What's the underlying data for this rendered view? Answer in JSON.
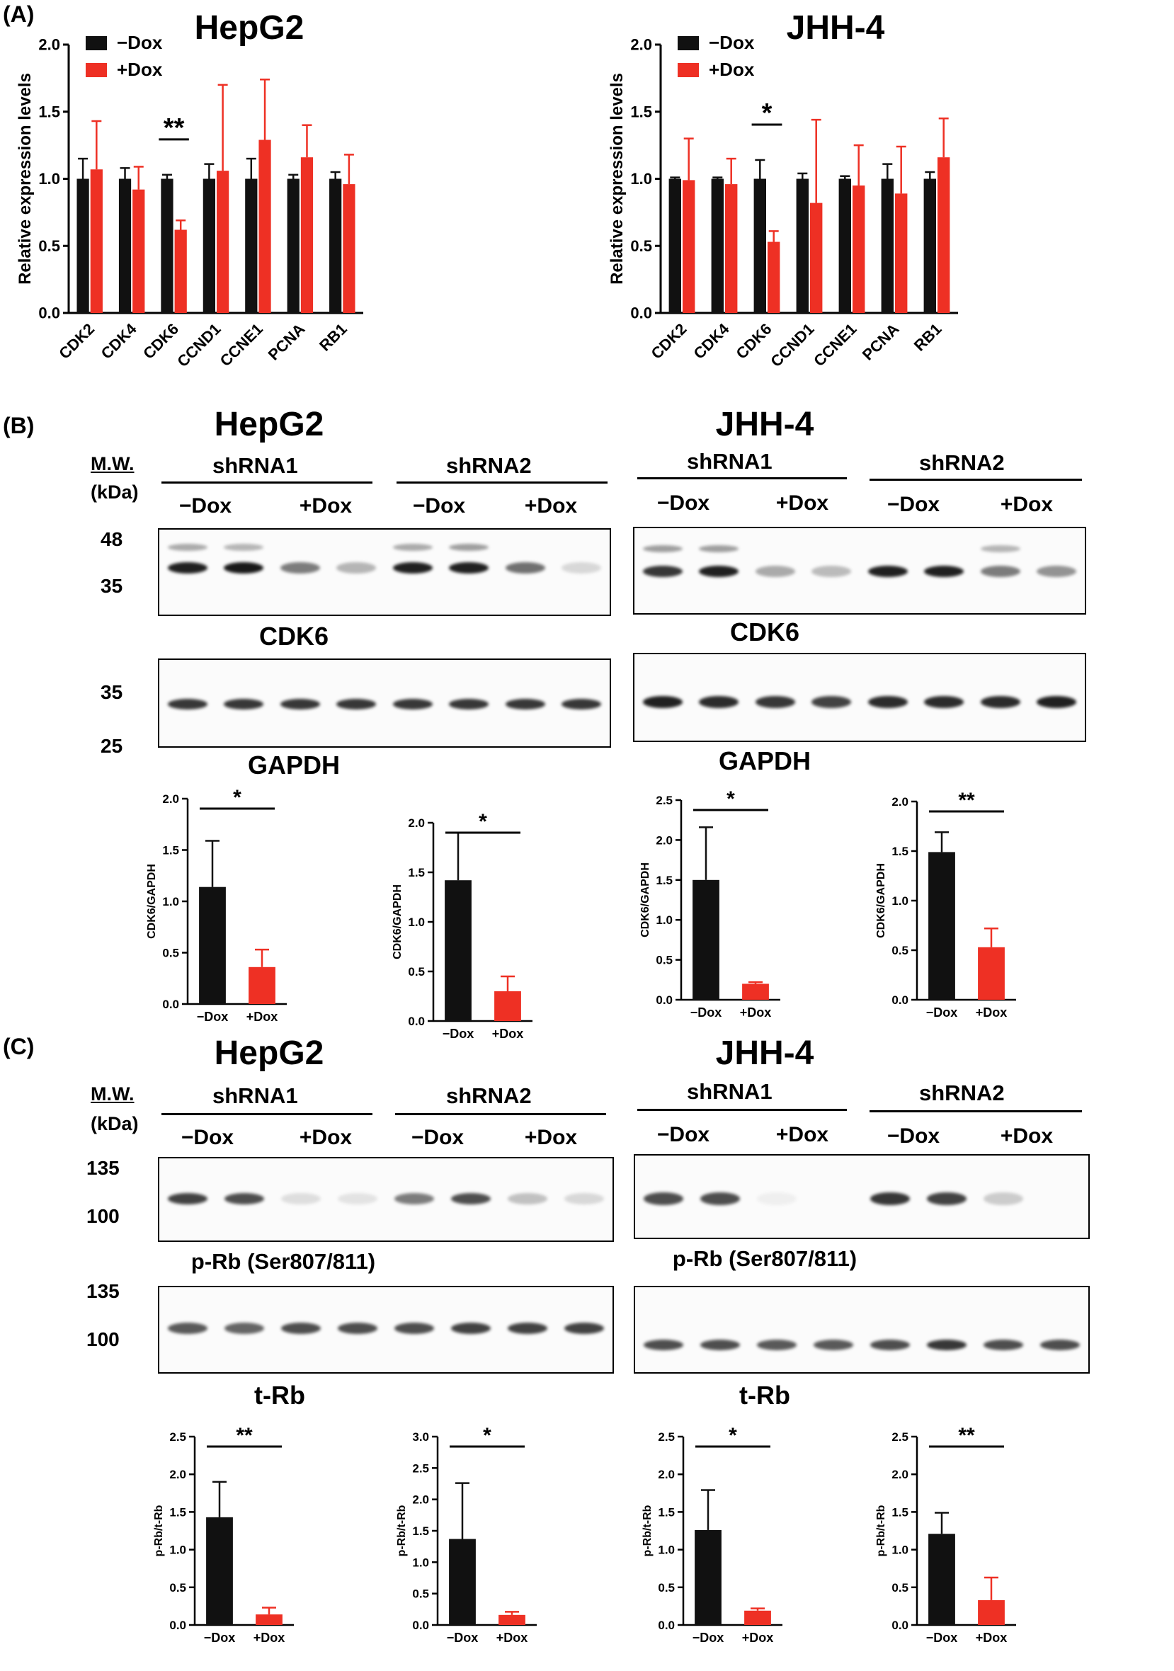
{
  "panels": {
    "A": "(A)",
    "B": "(B)",
    "C": "(C)"
  },
  "cells": {
    "hepg2": "HepG2",
    "jhh4": "JHH-4"
  },
  "mw": {
    "header": "M.W.",
    "unit": "(kDa)"
  },
  "groups": {
    "sh1": "shRNA1",
    "sh2": "shRNA2"
  },
  "conditions": {
    "minus": "−Dox",
    "plus": "+Dox"
  },
  "blot_labels": {
    "cdk6": "CDK6",
    "gapdh": "GAPDH",
    "prb": "p-Rb (Ser807/811)",
    "trb": "t-Rb"
  },
  "blot_mw_markers": {
    "b_top": [
      "48",
      "35"
    ],
    "b_bottom": [
      "35",
      "25"
    ],
    "c_top": [
      "135",
      "100"
    ],
    "c_bottom": [
      "135",
      "100"
    ]
  },
  "colors": {
    "minus_dox": "#111111",
    "plus_dox": "#ee3024"
  },
  "chart_data": [
    {
      "id": "A-HepG2",
      "type": "bar",
      "title": "HepG2",
      "ylabel": "Relative expression levels",
      "ylim": [
        0,
        2.0
      ],
      "yticks": [
        "0.0",
        "0.5",
        "1.0",
        "1.5",
        "2.0"
      ],
      "categories": [
        "CDK2",
        "CDK4",
        "CDK6",
        "CCND1",
        "CCNE1",
        "PCNA",
        "RB1"
      ],
      "series": [
        {
          "name": "−Dox",
          "values": [
            1.0,
            1.0,
            1.0,
            1.0,
            1.0,
            1.0,
            1.0
          ],
          "errors": [
            0.15,
            0.08,
            0.03,
            0.11,
            0.15,
            0.03,
            0.05
          ]
        },
        {
          "name": "+Dox",
          "values": [
            1.07,
            0.92,
            0.62,
            1.06,
            1.29,
            1.16,
            0.96
          ],
          "errors": [
            0.36,
            0.17,
            0.07,
            0.64,
            0.45,
            0.24,
            0.22
          ]
        }
      ],
      "significance": [
        {
          "category": "CDK6",
          "label": "**"
        }
      ],
      "legend": "top-left"
    },
    {
      "id": "A-JHH4",
      "type": "bar",
      "title": "JHH-4",
      "ylabel": "Relative expression levels",
      "ylim": [
        0,
        2.0
      ],
      "yticks": [
        "0.0",
        "0.5",
        "1.0",
        "1.5",
        "2.0"
      ],
      "categories": [
        "CDK2",
        "CDK4",
        "CDK6",
        "CCND1",
        "CCNE1",
        "PCNA",
        "RB1"
      ],
      "series": [
        {
          "name": "−Dox",
          "values": [
            1.0,
            1.0,
            1.0,
            1.0,
            1.0,
            1.0,
            1.0
          ],
          "errors": [
            0.01,
            0.01,
            0.14,
            0.04,
            0.02,
            0.11,
            0.05
          ]
        },
        {
          "name": "+Dox",
          "values": [
            0.99,
            0.96,
            0.53,
            0.82,
            0.95,
            0.89,
            1.16
          ],
          "errors": [
            0.31,
            0.19,
            0.08,
            0.62,
            0.3,
            0.35,
            0.29
          ]
        }
      ],
      "significance": [
        {
          "category": "CDK6",
          "label": "*"
        }
      ],
      "legend": "top-left"
    },
    {
      "id": "B-HepG2-sh1",
      "type": "bar",
      "ylabel": "CDK6/GAPDH",
      "ylim": [
        0,
        2.0
      ],
      "yticks": [
        "0.0",
        "0.5",
        "1.0",
        "1.5",
        "2.0"
      ],
      "categories": [
        "−Dox",
        "+Dox"
      ],
      "values": [
        1.14,
        0.36
      ],
      "errors": [
        0.45,
        0.17
      ],
      "significance": "*"
    },
    {
      "id": "B-HepG2-sh2",
      "type": "bar",
      "ylabel": "CDK6/GAPDH",
      "ylim": [
        0,
        2.0
      ],
      "yticks": [
        "0.0",
        "0.5",
        "1.0",
        "1.5",
        "2.0"
      ],
      "categories": [
        "−Dox",
        "+Dox"
      ],
      "values": [
        1.42,
        0.3
      ],
      "errors": [
        0.48,
        0.15
      ],
      "significance": "*"
    },
    {
      "id": "B-JHH4-sh1",
      "type": "bar",
      "ylabel": "CDK6/GAPDH",
      "ylim": [
        0,
        2.5
      ],
      "yticks": [
        "0.0",
        "0.5",
        "1.0",
        "1.5",
        "2.0",
        "2.5"
      ],
      "categories": [
        "−Dox",
        "+Dox"
      ],
      "values": [
        1.5,
        0.2
      ],
      "errors": [
        0.66,
        0.02
      ],
      "significance": "*"
    },
    {
      "id": "B-JHH4-sh2",
      "type": "bar",
      "ylabel": "CDK6/GAPDH",
      "ylim": [
        0,
        2.0
      ],
      "yticks": [
        "0.0",
        "0.5",
        "1.0",
        "1.5",
        "2.0"
      ],
      "categories": [
        "−Dox",
        "+Dox"
      ],
      "values": [
        1.49,
        0.53
      ],
      "errors": [
        0.2,
        0.19
      ],
      "significance": "**"
    },
    {
      "id": "C-HepG2-sh1",
      "type": "bar",
      "ylabel": "p-Rb/t-Rb",
      "ylim": [
        0,
        2.5
      ],
      "yticks": [
        "0.0",
        "0.5",
        "1.0",
        "1.5",
        "2.0",
        "2.5"
      ],
      "categories": [
        "−Dox",
        "+Dox"
      ],
      "values": [
        1.43,
        0.14
      ],
      "errors": [
        0.47,
        0.09
      ],
      "significance": "**"
    },
    {
      "id": "C-HepG2-sh2",
      "type": "bar",
      "ylabel": "p-Rb/t-Rb",
      "ylim": [
        0,
        3.0
      ],
      "yticks": [
        "0.0",
        "0.5",
        "1.0",
        "1.5",
        "2.0",
        "2.5",
        "3.0"
      ],
      "categories": [
        "−Dox",
        "+Dox"
      ],
      "values": [
        1.37,
        0.16
      ],
      "errors": [
        0.89,
        0.05
      ],
      "significance": "*"
    },
    {
      "id": "C-JHH4-sh1",
      "type": "bar",
      "ylabel": "p-Rb/t-Rb",
      "ylim": [
        0,
        2.5
      ],
      "yticks": [
        "0.0",
        "0.5",
        "1.0",
        "1.5",
        "2.0",
        "2.5"
      ],
      "categories": [
        "−Dox",
        "+Dox"
      ],
      "values": [
        1.26,
        0.19
      ],
      "errors": [
        0.53,
        0.03
      ],
      "significance": "*"
    },
    {
      "id": "C-JHH4-sh2",
      "type": "bar",
      "ylabel": "p-Rb/t-Rb",
      "ylim": [
        0,
        2.5
      ],
      "yticks": [
        "0.0",
        "0.5",
        "1.0",
        "1.5",
        "2.0",
        "2.5"
      ],
      "categories": [
        "−Dox",
        "+Dox"
      ],
      "values": [
        1.21,
        0.33
      ],
      "errors": [
        0.28,
        0.3
      ],
      "significance": "**"
    }
  ]
}
